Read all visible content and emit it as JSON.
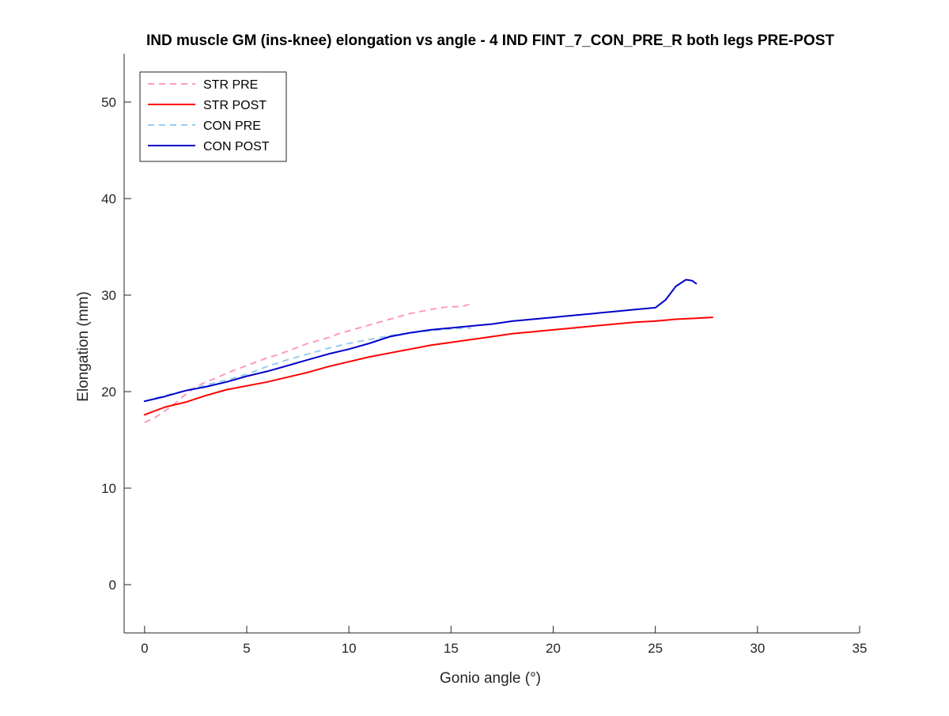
{
  "chart_data": {
    "type": "line",
    "title": "IND muscle GM (ins-knee) elongation vs angle - 4 IND FINT_7_CON_PRE_R both legs PRE-POST",
    "xlabel": "Gonio angle (°)",
    "ylabel": "Elongation (mm)",
    "xlim": [
      -1,
      35
    ],
    "ylim": [
      -5,
      55
    ],
    "xticks": [
      0,
      5,
      10,
      15,
      20,
      25,
      30,
      35
    ],
    "yticks": [
      0,
      10,
      20,
      30,
      40,
      50
    ],
    "xtick_labels": [
      "0",
      "5",
      "10",
      "15",
      "20",
      "25",
      "30",
      "35"
    ],
    "ytick_labels": [
      "0",
      "10",
      "20",
      "30",
      "40",
      "50"
    ],
    "grid": false,
    "legend_position": "top-left",
    "series": [
      {
        "name": "STR PRE",
        "color": "#ff99c0",
        "dash": "dashed",
        "x": [
          0,
          0.5,
          1,
          1.5,
          2,
          2.5,
          3,
          3.5,
          4,
          4.5,
          5,
          5.5,
          6,
          6.5,
          7,
          7.5,
          8,
          8.5,
          9,
          9.5,
          10,
          10.5,
          11,
          11.5,
          12,
          12.5,
          13,
          13.5,
          14,
          14.5,
          15,
          15.5,
          16
        ],
        "y": [
          16.8,
          17.3,
          18.0,
          18.8,
          19.7,
          20.5,
          21.0,
          21.4,
          21.9,
          22.3,
          22.7,
          23.1,
          23.5,
          23.8,
          24.2,
          24.6,
          25.0,
          25.3,
          25.6,
          26.0,
          26.3,
          26.6,
          26.9,
          27.2,
          27.5,
          27.8,
          28.1,
          28.3,
          28.5,
          28.7,
          28.8,
          28.8,
          29.1
        ]
      },
      {
        "name": "STR POST",
        "color": "#ff0000",
        "dash": "solid",
        "x": [
          0,
          1,
          2,
          3,
          4,
          5,
          6,
          7,
          8,
          9,
          10,
          11,
          12,
          13,
          14,
          15,
          16,
          17,
          18,
          19,
          20,
          21,
          22,
          23,
          24,
          25,
          26,
          27,
          27.8
        ],
        "y": [
          17.6,
          18.4,
          18.9,
          19.6,
          20.2,
          20.6,
          21.0,
          21.5,
          22.0,
          22.6,
          23.1,
          23.6,
          24.0,
          24.4,
          24.8,
          25.1,
          25.4,
          25.7,
          26.0,
          26.2,
          26.4,
          26.6,
          26.8,
          27.0,
          27.2,
          27.3,
          27.5,
          27.6,
          27.7
        ]
      },
      {
        "name": "CON PRE",
        "color": "#99ccf2",
        "dash": "dashed",
        "x": [
          0,
          1,
          2,
          3,
          4,
          5,
          6,
          7,
          8,
          9,
          10,
          11,
          12,
          13,
          14,
          15,
          16
        ],
        "y": [
          19.0,
          19.6,
          20.1,
          20.7,
          21.2,
          21.8,
          22.6,
          23.3,
          23.9,
          24.5,
          25.0,
          25.4,
          25.8,
          26.1,
          26.3,
          26.5,
          26.6
        ]
      },
      {
        "name": "CON POST",
        "color": "#0000cc",
        "dash": "solid",
        "x": [
          0,
          1,
          2,
          3,
          4,
          5,
          6,
          7,
          8,
          9,
          10,
          11,
          12,
          13,
          14,
          15,
          16,
          17,
          18,
          19,
          20,
          21,
          22,
          23,
          24,
          25,
          25.5,
          26,
          26.5,
          26.8,
          27
        ],
        "y": [
          19.0,
          19.5,
          20.1,
          20.5,
          21.0,
          21.6,
          22.1,
          22.7,
          23.3,
          23.9,
          24.4,
          25.0,
          25.7,
          26.1,
          26.4,
          26.6,
          26.8,
          27.0,
          27.3,
          27.5,
          27.7,
          27.9,
          28.1,
          28.3,
          28.5,
          28.7,
          29.5,
          30.9,
          31.6,
          31.5,
          31.2
        ]
      }
    ]
  }
}
